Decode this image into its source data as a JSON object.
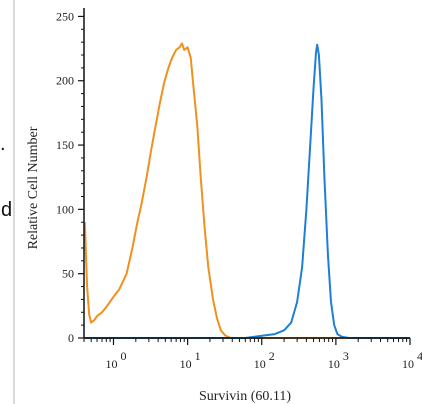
{
  "clipped_left_text": [
    ".",
    "d"
  ],
  "chart_data": {
    "type": "line",
    "title": "",
    "xlabel": "Survivin (60.11)",
    "ylabel": "Relative Cell Number",
    "x_scale": "log",
    "xlim": [
      0.4,
      10000
    ],
    "ylim": [
      0,
      255
    ],
    "x_ticks": [
      {
        "value": 1,
        "base": "10",
        "exp": "0"
      },
      {
        "value": 10,
        "base": "10",
        "exp": "1"
      },
      {
        "value": 100,
        "base": "10",
        "exp": "2"
      },
      {
        "value": 1000,
        "base": "10",
        "exp": "3"
      },
      {
        "value": 10000,
        "base": "10",
        "exp": "4"
      }
    ],
    "y_ticks": [
      0,
      50,
      100,
      150,
      200,
      250
    ],
    "grid": false,
    "series": [
      {
        "color": "#f0901e",
        "points": [
          [
            0.41,
            90
          ],
          [
            0.44,
            40
          ],
          [
            0.47,
            18
          ],
          [
            0.5,
            12
          ],
          [
            0.55,
            14
          ],
          [
            0.6,
            17
          ],
          [
            0.7,
            20
          ],
          [
            0.8,
            24
          ],
          [
            1.0,
            32
          ],
          [
            1.2,
            38
          ],
          [
            1.5,
            50
          ],
          [
            1.8,
            70
          ],
          [
            2.1,
            90
          ],
          [
            2.4,
            105
          ],
          [
            2.8,
            125
          ],
          [
            3.2,
            145
          ],
          [
            3.7,
            165
          ],
          [
            4.2,
            182
          ],
          [
            4.8,
            198
          ],
          [
            5.5,
            210
          ],
          [
            6.2,
            218
          ],
          [
            7.0,
            224
          ],
          [
            7.8,
            226
          ],
          [
            8.4,
            229
          ],
          [
            9.0,
            224
          ],
          [
            10,
            226
          ],
          [
            11,
            218
          ],
          [
            12,
            195
          ],
          [
            13.5,
            165
          ],
          [
            15,
            125
          ],
          [
            17,
            85
          ],
          [
            19,
            55
          ],
          [
            22,
            30
          ],
          [
            25,
            15
          ],
          [
            28,
            6
          ],
          [
            32,
            2
          ],
          [
            38,
            0
          ],
          [
            50,
            0
          ],
          [
            80,
            0
          ],
          [
            150,
            0
          ],
          [
            300,
            0
          ],
          [
            600,
            0
          ],
          [
            1000,
            0
          ],
          [
            2000,
            0
          ],
          [
            4000,
            0
          ],
          [
            10000,
            0
          ]
        ]
      },
      {
        "color": "#1e7fd6",
        "points": [
          [
            0.41,
            0
          ],
          [
            1,
            0
          ],
          [
            10,
            0
          ],
          [
            40,
            0
          ],
          [
            60,
            0
          ],
          [
            80,
            1
          ],
          [
            110,
            2
          ],
          [
            150,
            3
          ],
          [
            200,
            6
          ],
          [
            250,
            12
          ],
          [
            300,
            28
          ],
          [
            350,
            55
          ],
          [
            400,
            100
          ],
          [
            450,
            150
          ],
          [
            500,
            195
          ],
          [
            540,
            222
          ],
          [
            560,
            228
          ],
          [
            590,
            220
          ],
          [
            640,
            185
          ],
          [
            700,
            125
          ],
          [
            780,
            65
          ],
          [
            860,
            28
          ],
          [
            950,
            10
          ],
          [
            1050,
            3
          ],
          [
            1200,
            1
          ],
          [
            1500,
            0
          ],
          [
            3000,
            0
          ],
          [
            10000,
            0
          ]
        ]
      }
    ]
  }
}
